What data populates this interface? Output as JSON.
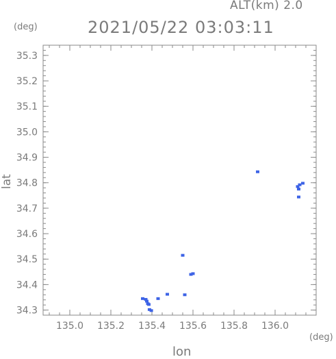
{
  "header": {
    "altitude": "ALT(km) 2.0",
    "datetime": "2021/05/22 03:03:11",
    "y_unit": "(deg)",
    "x_unit": "(deg)"
  },
  "chart_data": {
    "type": "scatter",
    "xlabel": "lon",
    "ylabel": "lat",
    "xlim": [
      134.87,
      136.2
    ],
    "ylim": [
      34.28,
      35.34
    ],
    "xticks": [
      135.0,
      135.2,
      135.4,
      135.6,
      135.8,
      136.0
    ],
    "xtick_labels": [
      "135.0",
      "135.2",
      "135.4",
      "135.6",
      "135.8",
      "136.0"
    ],
    "yticks": [
      34.3,
      34.4,
      34.5,
      34.6,
      34.7,
      34.8,
      34.9,
      35.0,
      35.1,
      35.2,
      35.3
    ],
    "ytick_labels": [
      "34.3",
      "34.4",
      "34.5",
      "34.6",
      "34.7",
      "34.8",
      "34.9",
      "35.0",
      "35.1",
      "35.2",
      "35.3"
    ],
    "marker_color": "#3d63e6",
    "points": [
      {
        "lon": 135.355,
        "lat": 34.345
      },
      {
        "lon": 135.37,
        "lat": 34.342
      },
      {
        "lon": 135.375,
        "lat": 34.335
      },
      {
        "lon": 135.38,
        "lat": 34.325
      },
      {
        "lon": 135.385,
        "lat": 34.322
      },
      {
        "lon": 135.388,
        "lat": 34.302
      },
      {
        "lon": 135.397,
        "lat": 34.298
      },
      {
        "lon": 135.43,
        "lat": 34.345
      },
      {
        "lon": 135.475,
        "lat": 34.362
      },
      {
        "lon": 135.55,
        "lat": 34.515
      },
      {
        "lon": 135.56,
        "lat": 34.36
      },
      {
        "lon": 135.59,
        "lat": 34.44
      },
      {
        "lon": 135.6,
        "lat": 34.443
      },
      {
        "lon": 135.915,
        "lat": 34.843
      },
      {
        "lon": 136.11,
        "lat": 34.785
      },
      {
        "lon": 136.115,
        "lat": 34.775
      },
      {
        "lon": 136.12,
        "lat": 34.792
      },
      {
        "lon": 136.115,
        "lat": 34.744
      },
      {
        "lon": 136.135,
        "lat": 34.798
      }
    ]
  }
}
